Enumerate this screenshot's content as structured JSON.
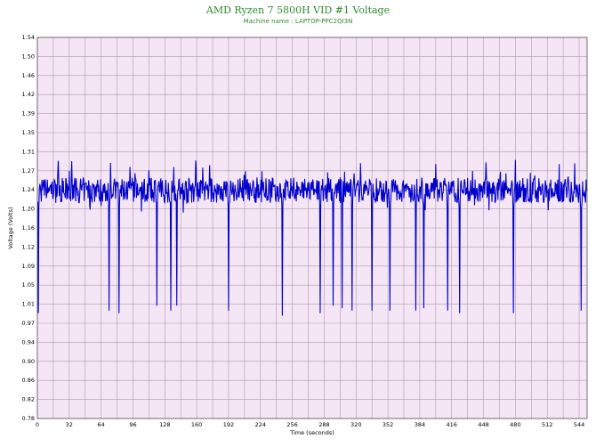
{
  "chart_data": {
    "type": "line",
    "title": "AMD Ryzen 7 5800H VID #1 Voltage",
    "subtitle": "Machine name : LAPTOP-PPC2QI3N",
    "xlabel": "Time (seconds)",
    "ylabel": "Voltage (Volts)",
    "xlim": [
      0,
      552
    ],
    "ylim": [
      0.78,
      1.54
    ],
    "x_ticks": [
      "0",
      "32",
      "64",
      "96",
      "128",
      "160",
      "192",
      "224",
      "256",
      "288",
      "320",
      "352",
      "384",
      "416",
      "448",
      "480",
      "512",
      "544"
    ],
    "y_ticks": [
      "0.78",
      "0.82",
      "0.86",
      "0.90",
      "0.94",
      "0.97",
      "1.01",
      "1.05",
      "1.09",
      "1.12",
      "1.16",
      "1.20",
      "1.24",
      "1.27",
      "1.31",
      "1.35",
      "1.39",
      "1.42",
      "1.46",
      "1.50",
      "1.54"
    ],
    "grid": true,
    "baseline": 1.235,
    "dips": [
      {
        "t": 1,
        "v": 0.99
      },
      {
        "t": 72,
        "v": 0.995
      },
      {
        "t": 82,
        "v": 0.99
      },
      {
        "t": 120,
        "v": 1.005
      },
      {
        "t": 134,
        "v": 0.995
      },
      {
        "t": 140,
        "v": 1.005
      },
      {
        "t": 192,
        "v": 0.995
      },
      {
        "t": 246,
        "v": 0.985
      },
      {
        "t": 284,
        "v": 0.99
      },
      {
        "t": 297,
        "v": 1.005
      },
      {
        "t": 306,
        "v": 1.0
      },
      {
        "t": 316,
        "v": 0.995
      },
      {
        "t": 336,
        "v": 0.995
      },
      {
        "t": 354,
        "v": 0.995
      },
      {
        "t": 380,
        "v": 0.995
      },
      {
        "t": 388,
        "v": 1.0
      },
      {
        "t": 412,
        "v": 0.995
      },
      {
        "t": 424,
        "v": 0.99
      },
      {
        "t": 478,
        "v": 0.99
      },
      {
        "t": 546,
        "v": 0.995
      }
    ],
    "series": [
      {
        "color": "#0000cc"
      }
    ]
  },
  "colors": {
    "plot_bg": "#f5e6f5",
    "grid": "#b09ab0",
    "line": "#0000cc",
    "title": "#2e8b2e"
  }
}
